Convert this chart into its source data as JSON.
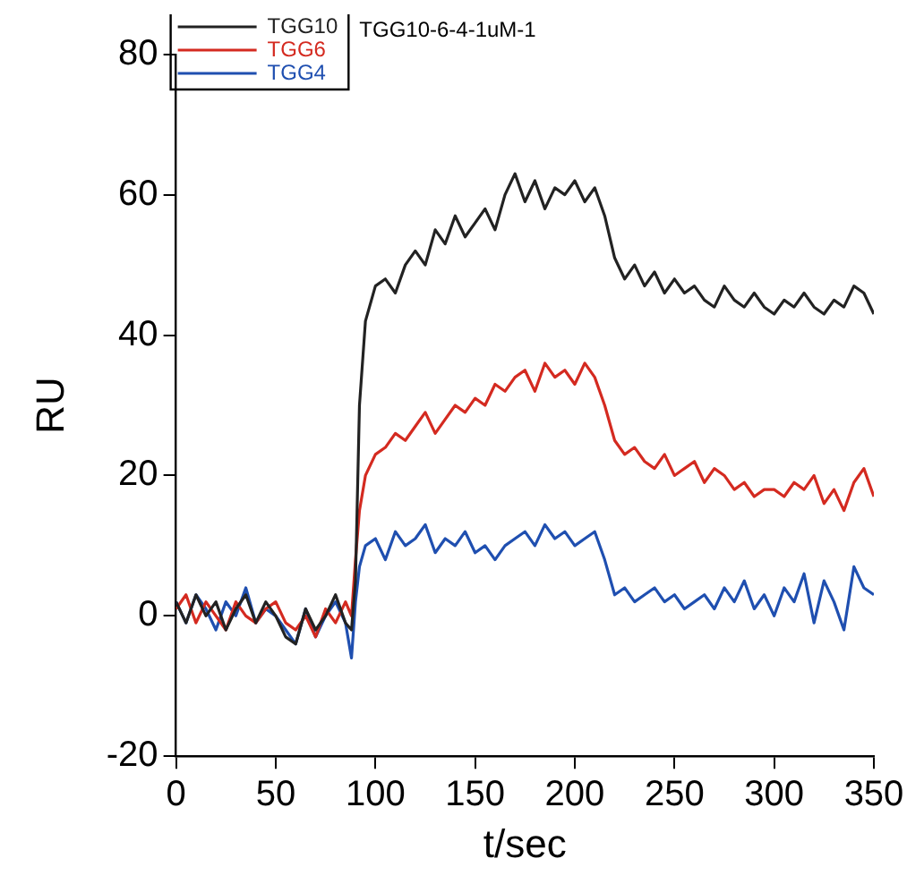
{
  "chart_data": {
    "type": "line",
    "title": "TGG10-6-4-1uM-1",
    "xlabel": "t/sec",
    "ylabel": "RU",
    "x": [
      0,
      5,
      10,
      15,
      20,
      25,
      30,
      35,
      40,
      45,
      50,
      55,
      60,
      65,
      70,
      75,
      80,
      85,
      88,
      90,
      92,
      95,
      100,
      105,
      110,
      115,
      120,
      125,
      130,
      135,
      140,
      145,
      150,
      155,
      160,
      165,
      170,
      175,
      180,
      185,
      190,
      195,
      200,
      205,
      210,
      215,
      220,
      225,
      230,
      235,
      240,
      245,
      250,
      255,
      260,
      265,
      270,
      275,
      280,
      285,
      290,
      295,
      300,
      305,
      310,
      315,
      320,
      325,
      330,
      335,
      340,
      345,
      350
    ],
    "series": [
      {
        "name": "TGG10",
        "color": "#222222",
        "values": [
          2,
          -1,
          3,
          0,
          2,
          -2,
          1,
          3,
          -1,
          2,
          0,
          -3,
          -4,
          1,
          -2,
          0,
          3,
          -1,
          -2,
          5,
          30,
          42,
          47,
          48,
          46,
          50,
          52,
          50,
          55,
          53,
          57,
          54,
          56,
          58,
          55,
          60,
          63,
          59,
          62,
          58,
          61,
          60,
          62,
          59,
          61,
          57,
          51,
          48,
          50,
          47,
          49,
          46,
          48,
          46,
          47,
          45,
          44,
          47,
          45,
          44,
          46,
          44,
          43,
          45,
          44,
          46,
          44,
          43,
          45,
          44,
          47,
          46,
          43
        ]
      },
      {
        "name": "TGG6",
        "color": "#d42a20",
        "values": [
          1,
          3,
          -1,
          2,
          0,
          -2,
          2,
          0,
          -1,
          1,
          2,
          -1,
          -2,
          0,
          -3,
          1,
          -1,
          2,
          0,
          8,
          15,
          20,
          23,
          24,
          26,
          25,
          27,
          29,
          26,
          28,
          30,
          29,
          31,
          30,
          33,
          32,
          34,
          35,
          32,
          36,
          34,
          35,
          33,
          36,
          34,
          30,
          25,
          23,
          24,
          22,
          21,
          23,
          20,
          21,
          22,
          19,
          21,
          20,
          18,
          19,
          17,
          18,
          18,
          17,
          19,
          18,
          20,
          16,
          18,
          15,
          19,
          21,
          17
        ]
      },
      {
        "name": "TGG4",
        "color": "#1f4fb0",
        "values": [
          2,
          -1,
          3,
          1,
          -2,
          2,
          0,
          4,
          -1,
          1,
          0,
          -2,
          -4,
          1,
          -3,
          0,
          2,
          -1,
          -6,
          2,
          7,
          10,
          11,
          8,
          12,
          10,
          11,
          13,
          9,
          11,
          10,
          12,
          9,
          10,
          8,
          10,
          11,
          12,
          10,
          13,
          11,
          12,
          10,
          11,
          12,
          8,
          3,
          4,
          2,
          3,
          4,
          2,
          3,
          1,
          2,
          3,
          1,
          4,
          2,
          5,
          1,
          3,
          0,
          4,
          2,
          6,
          -1,
          5,
          2,
          -2,
          7,
          4,
          3
        ]
      }
    ],
    "xlim": [
      0,
      350
    ],
    "xticks": [
      0,
      50,
      100,
      150,
      200,
      250,
      300,
      350
    ],
    "ylim": [
      -20,
      80
    ],
    "yticks": [
      -20,
      0,
      20,
      40,
      60,
      80
    ],
    "grid": false,
    "legend": "top left",
    "marker": "none",
    "line_style": "solid"
  }
}
